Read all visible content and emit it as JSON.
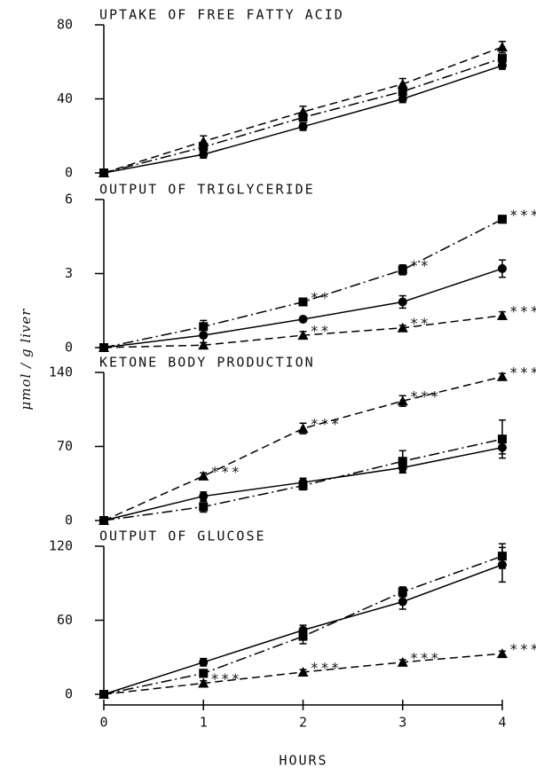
{
  "y_label": "μmol / g liver",
  "x_label": "HOURS",
  "chart_data": [
    {
      "type": "line",
      "title": "UPTAKE OF FREE FATTY ACID",
      "x": [
        0,
        1,
        2,
        3,
        4
      ],
      "xlim": [
        0,
        4
      ],
      "ylim": [
        0,
        80
      ],
      "yticks": [
        0,
        40,
        80
      ],
      "series": [
        {
          "color": "#000",
          "marker": "circle",
          "line": "solid",
          "values": [
            0,
            10,
            25,
            40,
            58
          ],
          "errors": [
            0,
            2,
            2,
            2,
            2
          ]
        },
        {
          "color": "#000",
          "marker": "square",
          "line": "dashdot",
          "values": [
            0,
            14,
            30,
            44,
            62
          ],
          "errors": [
            0,
            2,
            2,
            2,
            2
          ]
        },
        {
          "color": "#000",
          "marker": "triangle",
          "line": "dashed",
          "values": [
            0,
            17,
            33,
            48,
            68
          ],
          "errors": [
            0,
            3,
            3,
            3,
            3
          ]
        }
      ]
    },
    {
      "type": "line",
      "title": "OUTPUT OF TRIGLYCERIDE",
      "x": [
        0,
        1,
        2,
        3,
        4
      ],
      "xlim": [
        0,
        4
      ],
      "ylim": [
        0,
        6
      ],
      "yticks": [
        0,
        3,
        6
      ],
      "series": [
        {
          "color": "#000",
          "marker": "circle",
          "line": "solid",
          "values": [
            0,
            0.5,
            1.15,
            1.85,
            3.2
          ],
          "errors": [
            0,
            0.3,
            0.1,
            0.25,
            0.35
          ]
        },
        {
          "color": "#000",
          "marker": "square",
          "line": "dashdot",
          "values": [
            0,
            0.85,
            1.85,
            3.15,
            5.2
          ],
          "errors": [
            0,
            0.25,
            0.15,
            0.2,
            0.15
          ],
          "labels": [
            null,
            null,
            "**",
            "**",
            "***"
          ]
        },
        {
          "color": "#000",
          "marker": "triangle",
          "line": "dashed",
          "values": [
            0,
            0.1,
            0.5,
            0.8,
            1.3
          ],
          "errors": [
            0,
            0.1,
            0.15,
            0.1,
            0.15
          ],
          "labels": [
            null,
            null,
            "**",
            "**",
            "***"
          ]
        }
      ]
    },
    {
      "type": "line",
      "title": "KETONE BODY PRODUCTION",
      "x": [
        0,
        1,
        2,
        3,
        4
      ],
      "xlim": [
        0,
        4
      ],
      "ylim": [
        0,
        140
      ],
      "yticks": [
        0,
        70,
        140
      ],
      "series": [
        {
          "color": "#000",
          "marker": "circle",
          "line": "solid",
          "values": [
            0,
            23,
            36,
            50,
            69
          ],
          "errors": [
            0,
            4,
            4,
            5,
            6
          ]
        },
        {
          "color": "#000",
          "marker": "square",
          "line": "dashdot",
          "values": [
            0,
            13,
            33,
            56,
            77
          ],
          "errors": [
            0,
            5,
            4,
            10,
            18
          ]
        },
        {
          "color": "#000",
          "marker": "triangle",
          "line": "dashed",
          "values": [
            0,
            42,
            87,
            113,
            136
          ],
          "errors": [
            0,
            3,
            5,
            5,
            3
          ],
          "labels": [
            null,
            "***",
            "***",
            "***",
            "***"
          ]
        }
      ]
    },
    {
      "type": "line",
      "title": "OUTPUT OF GLUCOSE",
      "x": [
        0,
        1,
        2,
        3,
        4
      ],
      "xlim": [
        0,
        4
      ],
      "xticks": [
        0,
        1,
        2,
        3,
        4
      ],
      "ylim": [
        0,
        120
      ],
      "yticks": [
        0,
        60,
        120
      ],
      "series": [
        {
          "color": "#000",
          "marker": "circle",
          "line": "solid",
          "values": [
            0,
            26,
            52,
            75,
            105
          ],
          "errors": [
            0,
            3,
            4,
            6,
            14
          ]
        },
        {
          "color": "#000",
          "marker": "square",
          "line": "dashdot",
          "values": [
            0,
            17,
            47,
            83,
            112
          ],
          "errors": [
            0,
            3,
            6,
            4,
            10
          ]
        },
        {
          "color": "#000",
          "marker": "triangle",
          "line": "dashed",
          "values": [
            0,
            9,
            18,
            26,
            33
          ],
          "errors": [
            0,
            2,
            2,
            2,
            2
          ],
          "labels": [
            null,
            "***",
            "***",
            "***",
            "***"
          ]
        }
      ]
    }
  ]
}
